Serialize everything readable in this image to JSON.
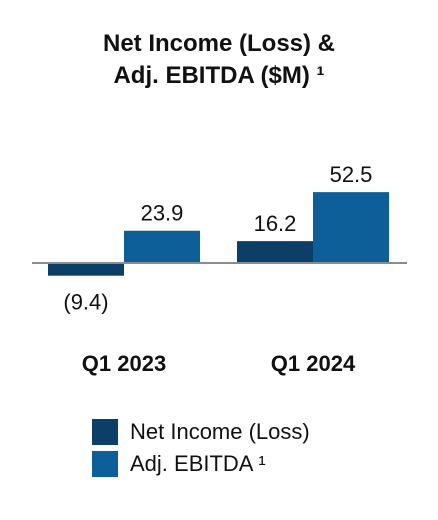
{
  "chart_data": {
    "type": "bar",
    "title_line1": "Net Income (Loss) &",
    "title_line2": "Adj. EBITDA ($M) ¹",
    "categories": [
      "Q1 2023",
      "Q1 2024"
    ],
    "series": [
      {
        "name": "Net Income (Loss)",
        "values": [
          -9.4,
          16.2
        ],
        "labels": [
          "(9.4)",
          "16.2"
        ],
        "color": "#0b3f68"
      },
      {
        "name": "Adj. EBITDA ¹",
        "values": [
          23.9,
          52.5
        ],
        "labels": [
          "23.9",
          "52.5"
        ],
        "color": "#0c5f99"
      }
    ],
    "ylim": [
      -12,
      56
    ],
    "grid": false,
    "legend": "bottom-left"
  }
}
